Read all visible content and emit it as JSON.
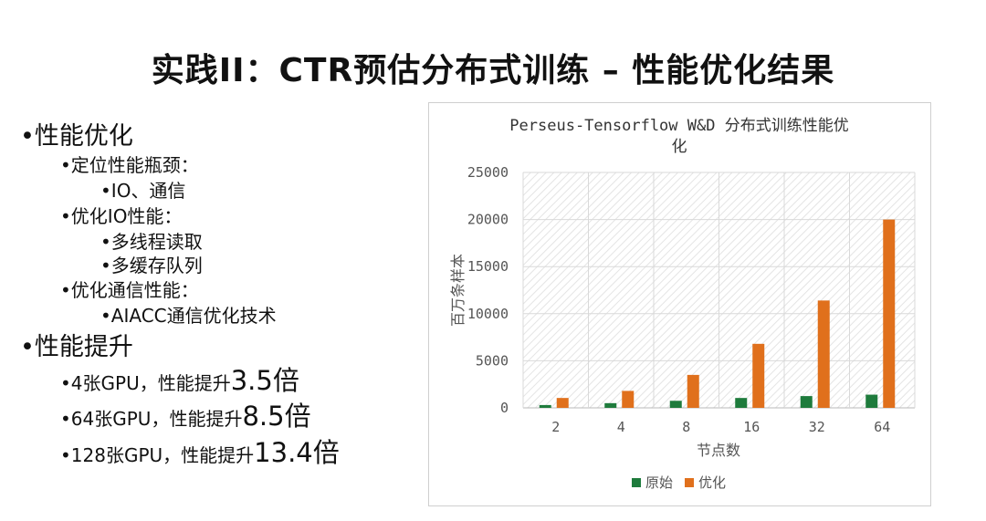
{
  "slide": {
    "title": "实践II：CTR预估分布式训练 – 性能优化结果"
  },
  "bullets": {
    "perf_opt": "•性能优化",
    "locate": "•定位性能瓶颈：",
    "io_comm": "•IO、通信",
    "opt_io": "•优化IO性能：",
    "multithread": "•多线程读取",
    "multibuffer": "•多缓存队列",
    "opt_comm": "•优化通信性能：",
    "aiacc": "•AIACC通信优化技术",
    "perf_up": "•性能提升",
    "gpu4_prefix": "•4张GPU，性能提升",
    "gpu4_value": "3.5倍",
    "gpu64_prefix": "•64张GPU，性能提升",
    "gpu64_value": "8.5倍",
    "gpu128_prefix": "•128张GPU，性能提升",
    "gpu128_value": "13.4倍"
  },
  "chart_data": {
    "type": "bar",
    "title_line1": "Perseus-Tensorflow W&D 分布式训练性能优",
    "title_line2": "化",
    "xlabel": "节点数",
    "ylabel": "百万条样本",
    "categories": [
      "2",
      "4",
      "8",
      "16",
      "32",
      "64"
    ],
    "ylim": [
      0,
      25000
    ],
    "yticks": [
      "0",
      "5000",
      "10000",
      "15000",
      "20000",
      "25000"
    ],
    "grid": true,
    "legend_position": "bottom",
    "series": [
      {
        "name": "原始",
        "color": "#1e7b3c",
        "values": [
          300,
          500,
          750,
          1050,
          1250,
          1400
        ]
      },
      {
        "name": "优化",
        "color": "#e0701c",
        "values": [
          1050,
          1800,
          3500,
          6800,
          11400,
          20000
        ]
      }
    ]
  }
}
